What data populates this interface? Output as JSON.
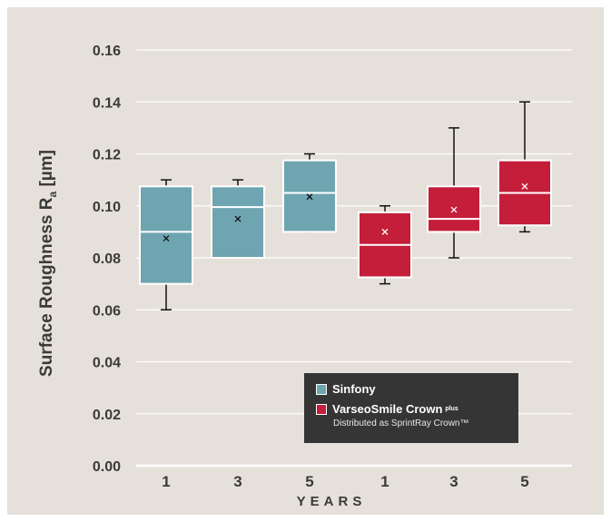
{
  "chart_data": {
    "type": "box",
    "ylabel": "Surface Roughness R",
    "ylabel_subscript": "a",
    "ylabel_unit": "[µm]",
    "xlabel": "YEARS",
    "ylim": [
      0.0,
      0.16
    ],
    "yticks": [
      "0.00",
      "0.02",
      "0.04",
      "0.06",
      "0.08",
      "0.10",
      "0.12",
      "0.14",
      "0.16"
    ],
    "categories": [
      "1",
      "3",
      "5",
      "1",
      "3",
      "5"
    ],
    "grid": true,
    "legend_position": "bottom-right",
    "series": [
      {
        "name": "Sinfony",
        "color": "#6fa5b0",
        "boxes": [
          {
            "category": "1",
            "min": 0.06,
            "q1": 0.07,
            "median": 0.09,
            "q3": 0.1075,
            "max": 0.11,
            "mean": 0.0875
          },
          {
            "category": "3",
            "min": 0.08,
            "q1": 0.08,
            "median": 0.0995,
            "q3": 0.1075,
            "max": 0.11,
            "mean": 0.095
          },
          {
            "category": "5",
            "min": 0.09,
            "q1": 0.09,
            "median": 0.105,
            "q3": 0.1175,
            "max": 0.12,
            "mean": 0.1035
          }
        ]
      },
      {
        "name": "VarseoSmile Crown",
        "name_superscript": "plus",
        "subtitle": "Distributed as SprintRay Crown™",
        "color": "#c41e3a",
        "boxes": [
          {
            "category": "1",
            "min": 0.07,
            "q1": 0.0725,
            "median": 0.085,
            "q3": 0.0975,
            "max": 0.1,
            "mean": 0.09
          },
          {
            "category": "3",
            "min": 0.08,
            "q1": 0.09,
            "median": 0.095,
            "q3": 0.1075,
            "max": 0.13,
            "mean": 0.0985
          },
          {
            "category": "5",
            "min": 0.09,
            "q1": 0.0925,
            "median": 0.105,
            "q3": 0.1175,
            "max": 0.14,
            "mean": 0.1075
          }
        ]
      }
    ]
  }
}
